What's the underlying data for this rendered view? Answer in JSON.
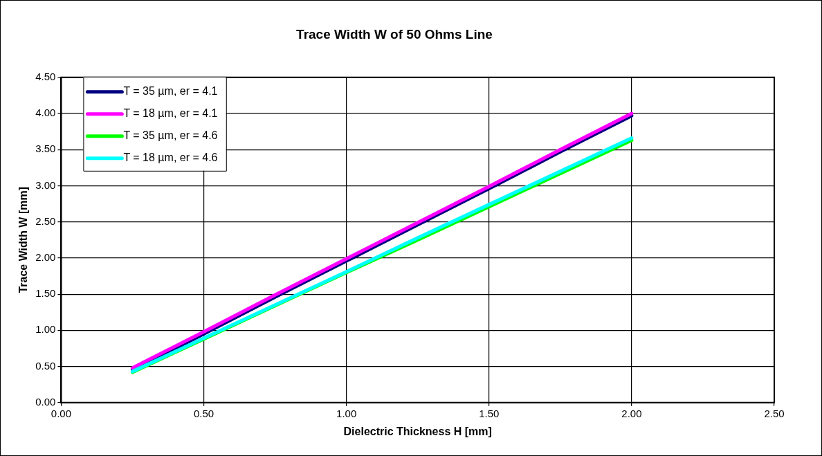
{
  "chart_data": {
    "type": "line",
    "title": "Trace Width W of 50 Ohms Line",
    "xlabel": "Dielectric Thickness H [mm]",
    "ylabel": "Trace Width W [mm]",
    "x": [
      0.25,
      0.5,
      0.75,
      1.0,
      1.25,
      1.5,
      1.75,
      2.0
    ],
    "series": [
      {
        "name": "T = 35 µm, er = 4.1",
        "color": "#000080",
        "values": [
          0.45,
          0.95,
          1.46,
          1.96,
          2.46,
          2.96,
          3.47,
          3.97
        ]
      },
      {
        "name": "T = 18 µm, er = 4.1",
        "color": "#ff00ff",
        "values": [
          0.48,
          0.98,
          1.49,
          1.99,
          2.49,
          2.99,
          3.5,
          4.0
        ]
      },
      {
        "name": "T = 35 µm, er = 4.6",
        "color": "#00ff00",
        "values": [
          0.42,
          0.88,
          1.34,
          1.8,
          2.25,
          2.71,
          3.17,
          3.63
        ]
      },
      {
        "name": "T = 18 µm, er = 4.6",
        "color": "#00ffff",
        "values": [
          0.43,
          0.89,
          1.35,
          1.81,
          2.28,
          2.74,
          3.2,
          3.66
        ]
      }
    ],
    "xlim": [
      0,
      2.5
    ],
    "xticks": [
      {
        "value": 0,
        "label": "0.00"
      },
      {
        "value": 0.5,
        "label": "0.50"
      },
      {
        "value": 1,
        "label": "1.00"
      },
      {
        "value": 1.5,
        "label": "1.50"
      },
      {
        "value": 2,
        "label": "2.00"
      },
      {
        "value": 2.5,
        "label": "2.50"
      }
    ],
    "ylim": [
      0,
      4.5
    ],
    "yticks": [
      {
        "value": 0,
        "label": "0.00"
      },
      {
        "value": 0.5,
        "label": "0.50"
      },
      {
        "value": 1,
        "label": "1.00"
      },
      {
        "value": 1.5,
        "label": "1.50"
      },
      {
        "value": 2,
        "label": "2.00"
      },
      {
        "value": 2.5,
        "label": "2.50"
      },
      {
        "value": 3,
        "label": "3.00"
      },
      {
        "value": 3.5,
        "label": "3.50"
      },
      {
        "value": 4,
        "label": "4.00"
      },
      {
        "value": 4.5,
        "label": "4.50"
      }
    ],
    "grid": true,
    "legend": "top left",
    "marker": "none",
    "line_style": "solid"
  }
}
